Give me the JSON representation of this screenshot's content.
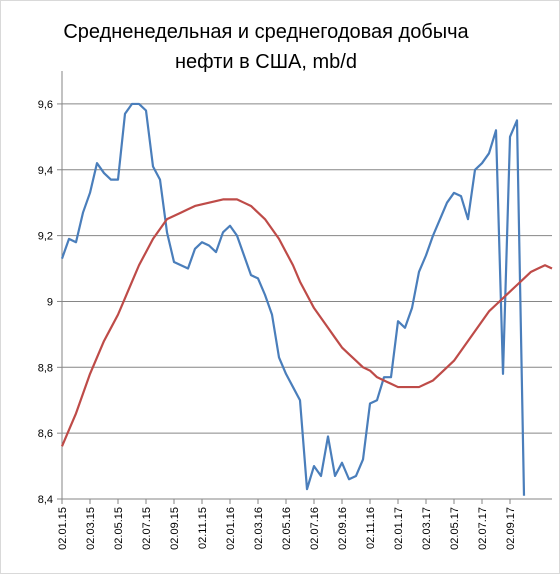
{
  "chart_data": {
    "type": "line",
    "title": [
      "Средненедельная и среднегодовая  добыча",
      "нефти в США, mb/d"
    ],
    "categories": [
      "02.01.15",
      null,
      null,
      null,
      "02.03.15",
      null,
      null,
      null,
      "02.05.15",
      null,
      null,
      null,
      "02.07.15",
      null,
      null,
      null,
      "02.09.15",
      null,
      null,
      null,
      "02.11.15",
      null,
      null,
      null,
      "02.01.16",
      null,
      null,
      null,
      "02.03.16",
      null,
      null,
      null,
      "02.05.16",
      null,
      null,
      null,
      "02.07.16",
      null,
      null,
      null,
      "02.09.16",
      null,
      null,
      null,
      "02.11.16",
      null,
      null,
      null,
      "02.01.17",
      null,
      null,
      null,
      "02.03.17",
      null,
      null,
      null,
      "02.05.17",
      null,
      null,
      null,
      "02.07.17",
      null,
      null,
      null,
      "02.09.17",
      null,
      null,
      null,
      null,
      null,
      null
    ],
    "series": [
      {
        "color": "#4a7ebb",
        "values": [
          9.13,
          9.19,
          9.18,
          9.27,
          9.33,
          9.42,
          9.39,
          9.37,
          9.37,
          9.57,
          9.6,
          9.6,
          9.58,
          9.41,
          9.37,
          9.21,
          9.12,
          9.11,
          9.1,
          9.16,
          9.18,
          9.17,
          9.15,
          9.21,
          9.23,
          9.2,
          9.14,
          9.08,
          9.07,
          9.02,
          8.96,
          8.83,
          8.78,
          8.74,
          8.7,
          8.43,
          8.5,
          8.47,
          8.59,
          8.47,
          8.51,
          8.46,
          8.47,
          8.52,
          8.69,
          8.7,
          8.77,
          8.77,
          8.94,
          8.92,
          8.98,
          9.09,
          9.14,
          9.2,
          9.25,
          9.3,
          9.33,
          9.32,
          9.25,
          9.4,
          9.42,
          9.45,
          9.52,
          8.78,
          9.5,
          9.55,
          8.41,
          null,
          null,
          null,
          null
        ]
      },
      {
        "color": "#be4b48",
        "values": [
          8.56,
          8.61,
          8.66,
          8.72,
          8.78,
          8.83,
          8.88,
          8.92,
          8.96,
          9.01,
          9.06,
          9.11,
          9.15,
          9.19,
          9.22,
          9.25,
          9.26,
          9.27,
          9.28,
          9.29,
          9.295,
          9.3,
          9.305,
          9.31,
          9.31,
          9.31,
          9.3,
          9.29,
          9.27,
          9.25,
          9.22,
          9.19,
          9.15,
          9.11,
          9.06,
          9.02,
          8.98,
          8.95,
          8.92,
          8.89,
          8.86,
          8.84,
          8.82,
          8.8,
          8.79,
          8.77,
          8.76,
          8.75,
          8.74,
          8.74,
          8.74,
          8.74,
          8.75,
          8.76,
          8.78,
          8.8,
          8.82,
          8.85,
          8.88,
          8.91,
          8.94,
          8.97,
          8.99,
          9.01,
          9.03,
          9.05,
          9.07,
          9.09,
          9.1,
          9.11,
          9.1
        ]
      }
    ],
    "ylim": [
      8.4,
      9.7
    ],
    "yticks": [
      {
        "value": 8.4,
        "label": "8,4"
      },
      {
        "value": 8.6,
        "label": "8,6"
      },
      {
        "value": 8.8,
        "label": "8,8"
      },
      9,
      {
        "value": 9.2,
        "label": "9,2"
      },
      {
        "value": 9.4,
        "label": "9,4"
      },
      {
        "value": 9.6,
        "label": "9,6"
      }
    ],
    "grid": true
  }
}
